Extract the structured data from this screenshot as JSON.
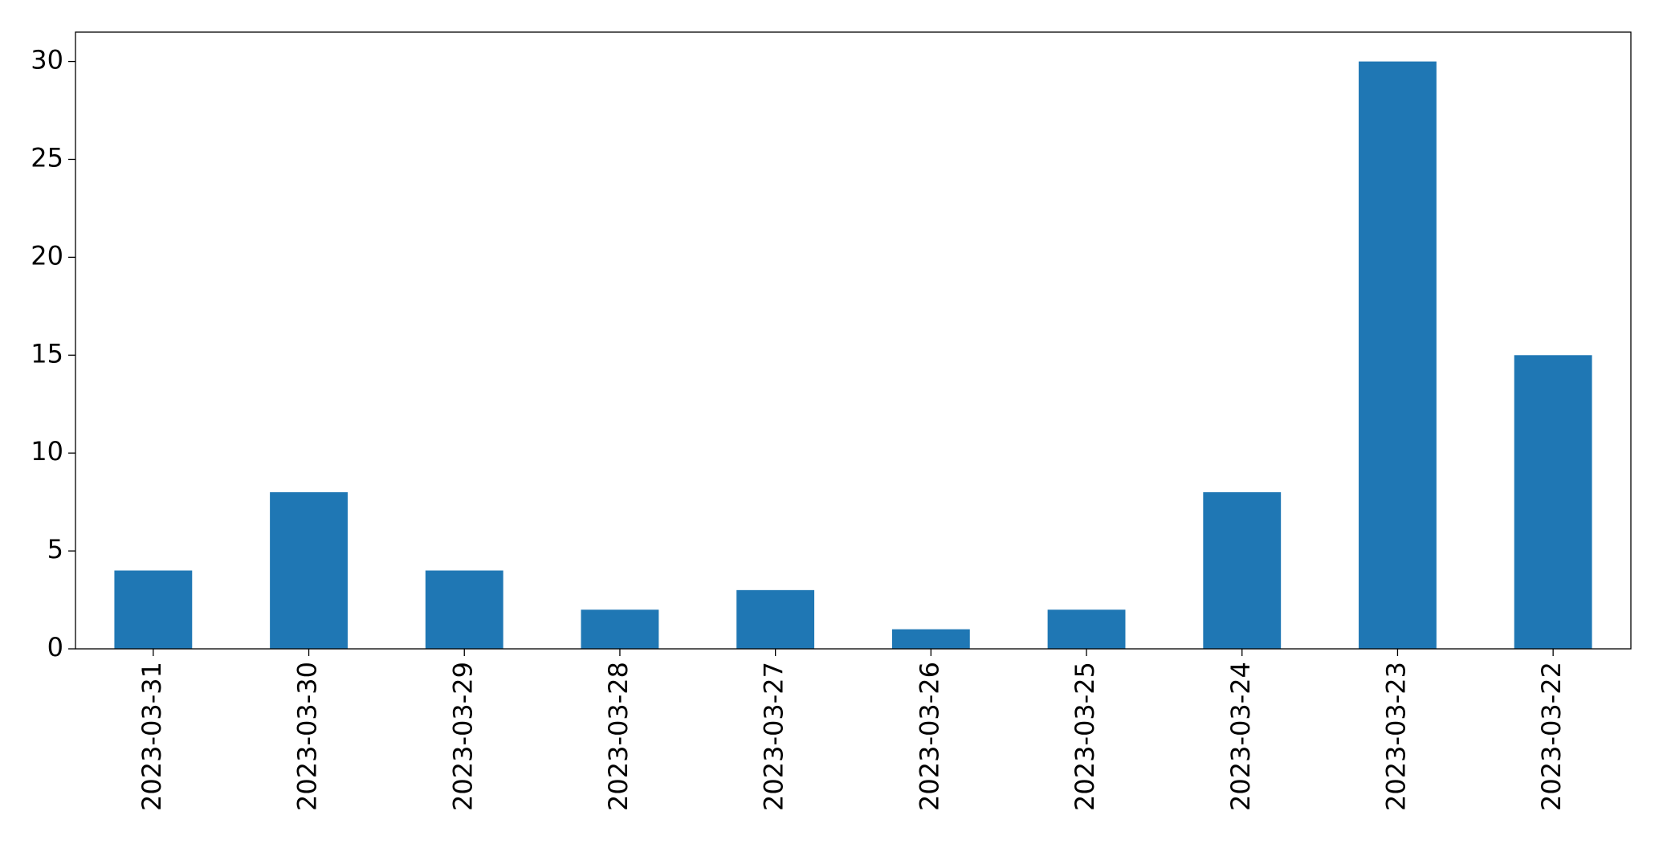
{
  "chart_data": {
    "type": "bar",
    "categories": [
      "2023-03-31",
      "2023-03-30",
      "2023-03-29",
      "2023-03-28",
      "2023-03-27",
      "2023-03-26",
      "2023-03-25",
      "2023-03-24",
      "2023-03-23",
      "2023-03-22"
    ],
    "values": [
      4,
      8,
      4,
      2,
      3,
      1,
      2,
      8,
      30,
      15
    ],
    "color": "#1f77b4",
    "ylim": [
      0,
      31.5
    ],
    "yticks": [
      0,
      5,
      10,
      15,
      20,
      25,
      30
    ],
    "grid": false
  }
}
